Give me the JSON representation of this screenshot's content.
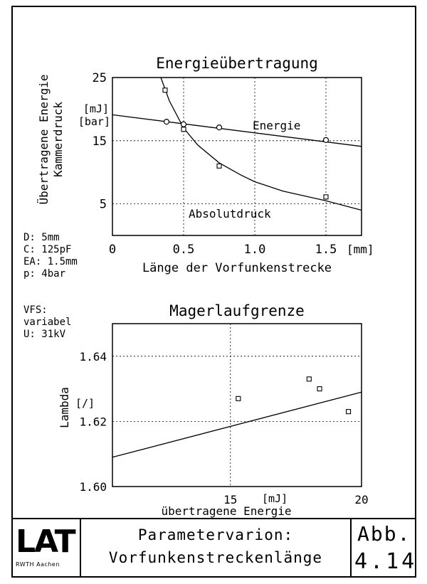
{
  "chart_data": [
    {
      "type": "scatter",
      "title": "Energieübertragung",
      "ylabel": [
        "Übertragene Energie",
        "Kammerdruck"
      ],
      "yunits": [
        "[mJ]",
        "[bar]"
      ],
      "xlabel": "Länge der Vorfunkenstrecke",
      "xunit": "[mm]",
      "xlim": [
        0,
        1.75
      ],
      "ylim": [
        0,
        25
      ],
      "xticks": [
        "0",
        "0.5",
        "1.0",
        "1.5"
      ],
      "xtick_values": [
        0,
        0.5,
        1.0,
        1.5
      ],
      "yticks": [
        "5",
        "15",
        "25"
      ],
      "ytick_values": [
        5,
        15,
        25
      ],
      "grid": true,
      "series": [
        {
          "name": "Energie",
          "marker": "circle",
          "x": [
            0.38,
            0.5,
            0.75,
            1.5
          ],
          "y": [
            18.0,
            17.6,
            17.1,
            15.1
          ],
          "fit_line": {
            "x": [
              0,
              1.75
            ],
            "y": [
              19.1,
              14.1
            ]
          }
        },
        {
          "name": "Absolutdruck",
          "marker": "square",
          "x": [
            0.37,
            0.5,
            0.75,
            1.5
          ],
          "y": [
            23.0,
            16.8,
            11.0,
            6.1
          ],
          "fit_curve": {
            "x": [
              0.34,
              0.4,
              0.5,
              0.6,
              0.75,
              0.9,
              1.0,
              1.2,
              1.5,
              1.75
            ],
            "y": [
              25.0,
              21.3,
              17.0,
              14.3,
              11.5,
              9.6,
              8.5,
              7.0,
              5.5,
              4.0
            ]
          }
        }
      ]
    },
    {
      "type": "scatter",
      "title": "Magerlaufgrenze",
      "ylabel": "Lambda",
      "yunit": "[/]",
      "xlabel": "übertragene Energie",
      "xunit": "[mJ]",
      "xlim": [
        10.5,
        20
      ],
      "ylim": [
        1.6,
        1.65
      ],
      "xticks": [
        "15",
        "20"
      ],
      "xtick_values": [
        15,
        20
      ],
      "yticks": [
        "1.60",
        "1.62",
        "1.64"
      ],
      "ytick_values": [
        1.6,
        1.62,
        1.64
      ],
      "grid": true,
      "series": [
        {
          "marker": "square",
          "x": [
            15.3,
            19.5,
            18.0,
            18.4
          ],
          "y": [
            1.627,
            1.623,
            1.633,
            1.63
          ],
          "fit_line": {
            "x": [
              10.5,
              20
            ],
            "y": [
              1.609,
              1.629
            ]
          }
        }
      ]
    }
  ],
  "notes": {
    "params": [
      "D: 5mm",
      "C: 125pF",
      "EA: 1.5mm",
      "p: 4bar"
    ],
    "vfs": [
      "VFS:",
      "variabel",
      "U: 31kV"
    ]
  },
  "title_block": {
    "logo": "LAT",
    "logo_sub": "RWTH Aachen",
    "caption_line1": "Parametervarion:",
    "caption_line2": "Vorfunkenstreckenlänge",
    "abb_label": "Abb.",
    "abb_number": "4.14"
  }
}
